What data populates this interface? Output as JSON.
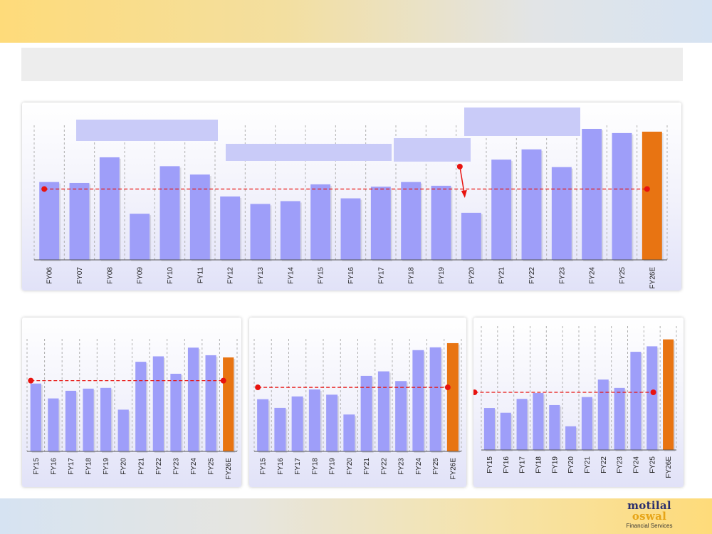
{
  "header": {
    "title": ""
  },
  "logo": {
    "line1": "motilal",
    "line2": "oswal",
    "sub": "Financial Services"
  },
  "colors": {
    "bar": "#9e9ef9",
    "highlight": "#e87412",
    "avg_line": "#e8130f",
    "grid": "#b0b0b0"
  },
  "chart_data": [
    {
      "type": "bar",
      "title": "",
      "categories": [
        "FY06",
        "FY07",
        "FY08",
        "FY09",
        "FY10",
        "FY11",
        "FY12",
        "FY13",
        "FY14",
        "FY15",
        "FY16",
        "FY17",
        "FY18",
        "FY19",
        "FY20",
        "FY21",
        "FY22",
        "FY23",
        "FY24",
        "FY25",
        "FY26E"
      ],
      "values": [
        16.7,
        16.5,
        22.0,
        9.9,
        20.1,
        18.3,
        13.6,
        12.0,
        12.6,
        16.2,
        13.2,
        15.7,
        16.7,
        15.9,
        10.1,
        21.5,
        23.7,
        19.9,
        28.1,
        27.2,
        27.5
      ],
      "highlight_index": 20,
      "average": 15.2,
      "ylim": [
        0,
        31
      ],
      "xlabel": "",
      "ylabel": "",
      "annotation_boxes": [
        "",
        "",
        "",
        ""
      ],
      "annotation_arrow": {
        "category": "FY20"
      }
    },
    {
      "type": "bar",
      "title": "",
      "categories": [
        "FY15",
        "FY16",
        "FY17",
        "FY18",
        "FY19",
        "FY20",
        "FY21",
        "FY22",
        "FY23",
        "FY24",
        "FY25",
        "FY26E"
      ],
      "values": [
        18.7,
        14.6,
        16.7,
        17.3,
        17.5,
        11.5,
        24.7,
        26.2,
        21.4,
        28.6,
        26.5,
        25.9
      ],
      "highlight_index": 11,
      "average": 19.5,
      "ylim": [
        0,
        31
      ],
      "xlabel": "",
      "ylabel": ""
    },
    {
      "type": "bar",
      "title": "",
      "categories": [
        "FY15",
        "FY16",
        "FY17",
        "FY18",
        "FY19",
        "FY20",
        "FY21",
        "FY22",
        "FY23",
        "FY24",
        "FY25",
        "FY26E"
      ],
      "values": [
        15.0,
        12.5,
        15.8,
        17.8,
        16.3,
        10.6,
        21.7,
        23.0,
        20.2,
        29.1,
        29.9,
        31.1
      ],
      "highlight_index": 11,
      "average": 18.4,
      "ylim": [
        0,
        31.5
      ],
      "xlabel": "",
      "ylabel": ""
    },
    {
      "type": "bar",
      "title": "",
      "categories": [
        "FY15",
        "FY16",
        "FY17",
        "FY18",
        "FY19",
        "FY20",
        "FY21",
        "FY22",
        "FY23",
        "FY24",
        "FY25",
        "FY26E"
      ],
      "values": [
        11.5,
        10.2,
        14.0,
        15.6,
        12.3,
        6.5,
        14.5,
        19.3,
        17.0,
        26.9,
        28.4,
        30.3
      ],
      "highlight_index": 11,
      "average": 15.8,
      "ylim": [
        0,
        35.5
      ],
      "xlabel": "",
      "ylabel": ""
    }
  ]
}
